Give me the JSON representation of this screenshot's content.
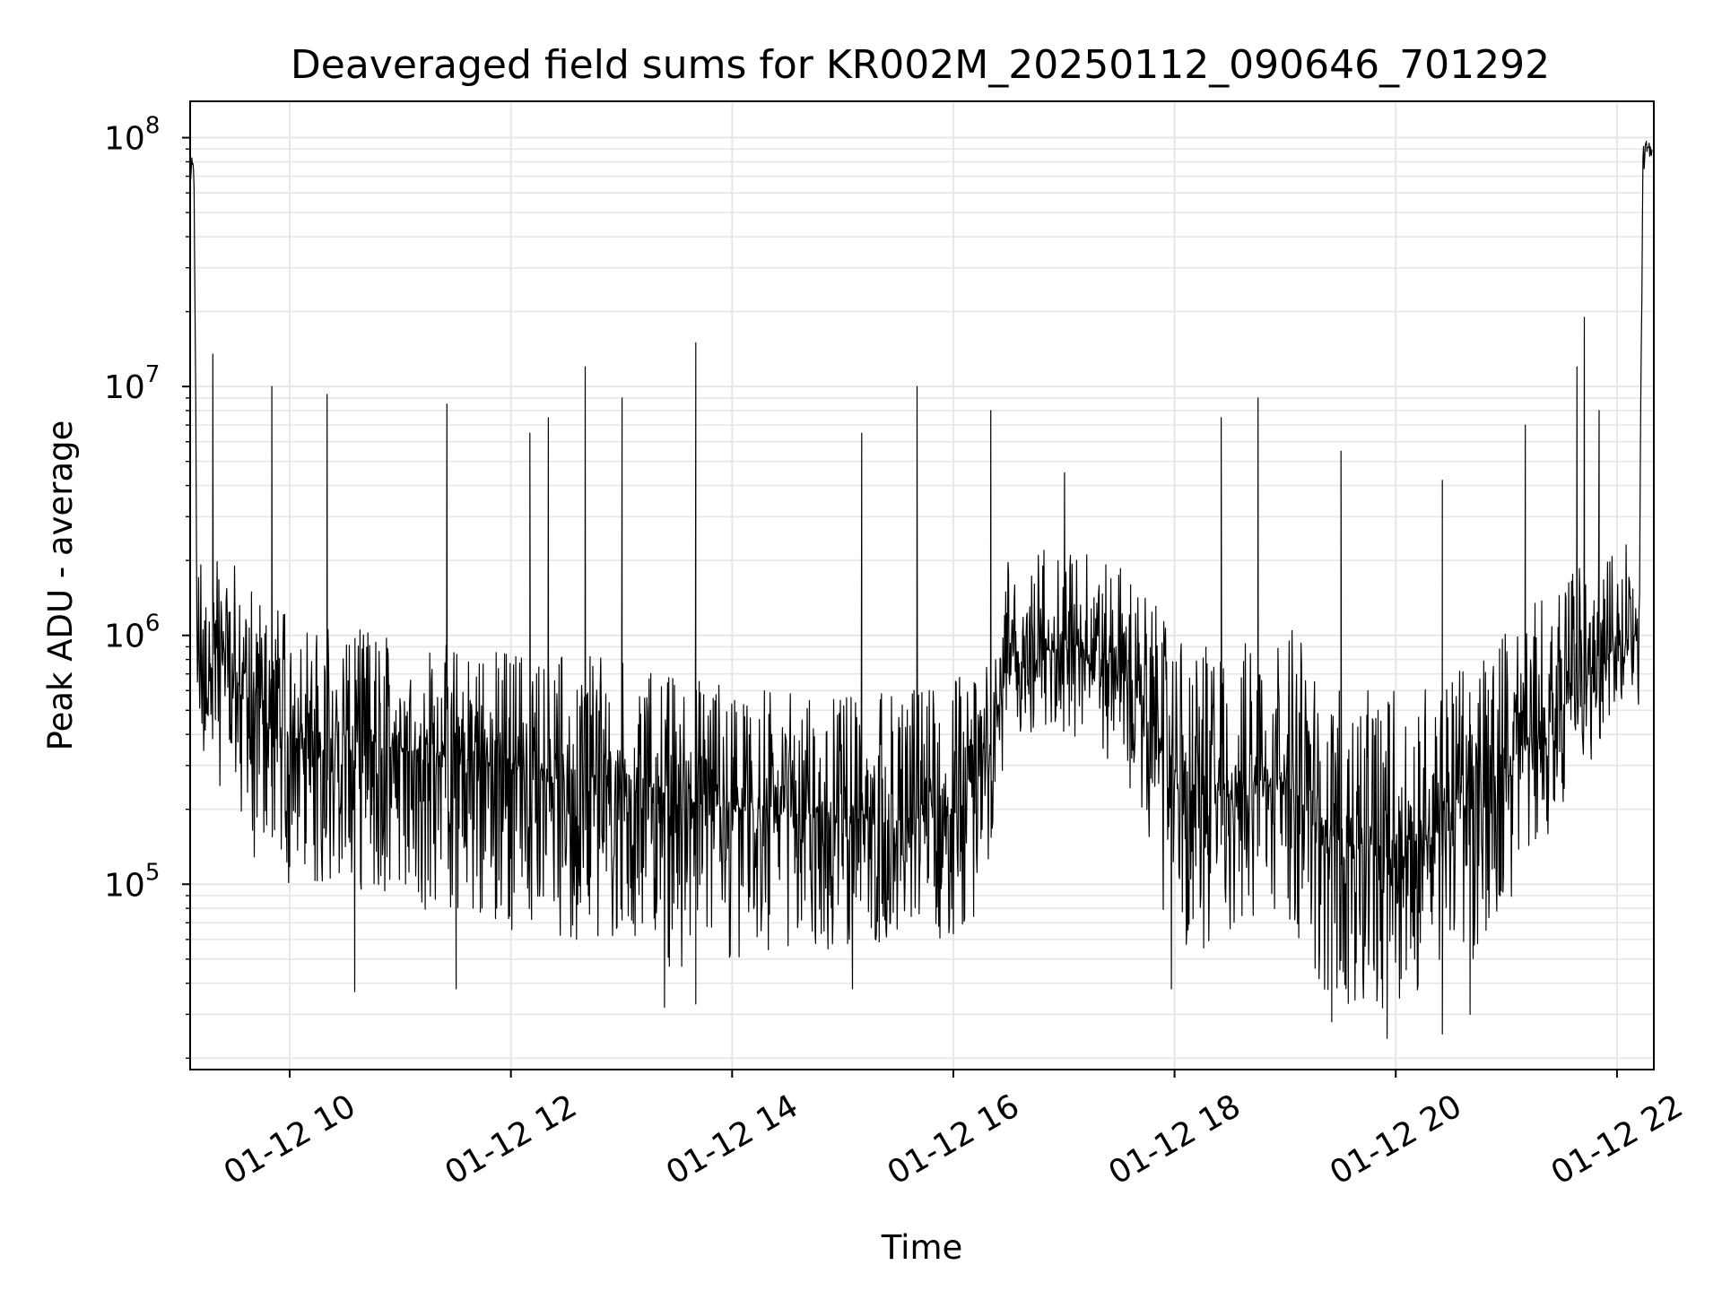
{
  "chart_data": {
    "type": "line",
    "title": "Deaveraged field sums for KR002M_20250112_090646_701292",
    "xlabel": "Time",
    "ylabel": "Peak ADU - average",
    "yscale": "log",
    "ylim": [
      18000,
      140000000
    ],
    "xlim": [
      "01-12 09:06",
      "01-12 22:20"
    ],
    "grid": true,
    "line_color": "#000000",
    "grid_color": "#e6e6e6",
    "x_ticks": [
      {
        "label": "01-12 10",
        "value": "01-12 10:00"
      },
      {
        "label": "01-12 12",
        "value": "01-12 12:00"
      },
      {
        "label": "01-12 14",
        "value": "01-12 14:00"
      },
      {
        "label": "01-12 16",
        "value": "01-12 16:00"
      },
      {
        "label": "01-12 18",
        "value": "01-12 18:00"
      },
      {
        "label": "01-12 20",
        "value": "01-12 20:00"
      },
      {
        "label": "01-12 22",
        "value": "01-12 22:00"
      }
    ],
    "y_ticks": [
      {
        "base": "10",
        "exp": "5",
        "value": 100000
      },
      {
        "base": "10",
        "exp": "6",
        "value": 1000000
      },
      {
        "base": "10",
        "exp": "7",
        "value": 10000000
      },
      {
        "base": "10",
        "exp": "8",
        "value": 100000000
      }
    ],
    "series": [
      {
        "x": [
          "01-12 09:06",
          "01-12 09:07",
          "01-12 09:08",
          "01-12 09:10",
          "01-12 09:15",
          "01-12 09:30",
          "01-12 09:45",
          "01-12 10:00",
          "01-12 10:30",
          "01-12 11:00",
          "01-12 11:30",
          "01-12 12:00",
          "01-12 12:30",
          "01-12 13:00",
          "01-12 13:30",
          "01-12 14:00",
          "01-12 14:30",
          "01-12 15:00",
          "01-12 15:30",
          "01-12 16:00",
          "01-12 16:15",
          "01-12 16:30",
          "01-12 17:00",
          "01-12 17:30",
          "01-12 17:45",
          "01-12 18:00",
          "01-12 18:30",
          "01-12 19:00",
          "01-12 19:15",
          "01-12 19:30",
          "01-12 20:00",
          "01-12 20:30",
          "01-12 21:00",
          "01-12 21:30",
          "01-12 21:45",
          "01-12 22:00",
          "01-12 22:10",
          "01-12 22:12",
          "01-12 22:14",
          "01-12 22:16",
          "01-12 22:19"
        ],
        "median": [
          70000000,
          75000000,
          78000000,
          800000,
          900000,
          700000,
          500000,
          400000,
          380000,
          350000,
          320000,
          300000,
          280000,
          270000,
          220000,
          200000,
          190000,
          180000,
          175000,
          190000,
          250000,
          800000,
          900000,
          750000,
          500000,
          250000,
          220000,
          280000,
          180000,
          150000,
          140000,
          170000,
          300000,
          500000,
          700000,
          900000,
          1000000,
          900000,
          80000000,
          90000000,
          85000000
        ],
        "low": [
          60000000,
          65000000,
          70000000,
          400000,
          300000,
          200000,
          100000,
          100000,
          90000,
          80000,
          70000,
          60000,
          60000,
          60000,
          40000,
          50000,
          50000,
          55000,
          60000,
          60000,
          80000,
          400000,
          400000,
          300000,
          150000,
          50000,
          60000,
          80000,
          40000,
          30000,
          30000,
          40000,
          70000,
          200000,
          300000,
          500000,
          600000,
          500000,
          70000000,
          80000000,
          75000000
        ],
        "high": [
          80000000,
          80000000,
          80000000,
          2000000,
          2500000,
          2000000,
          1500000,
          1200000,
          1100000,
          1000000,
          900000,
          900000,
          850000,
          800000,
          700000,
          650000,
          600000,
          600000,
          600000,
          700000,
          900000,
          2200000,
          2500000,
          2000000,
          1500000,
          1000000,
          900000,
          1200000,
          800000,
          600000,
          600000,
          700000,
          1100000,
          1700000,
          2200000,
          2500000,
          2200000,
          1500000,
          90000000,
          95000000,
          90000000
        ],
        "spikes": [
          {
            "x": "01-12 09:18",
            "y": 13500000
          },
          {
            "x": "01-12 09:50",
            "y": 10000000
          },
          {
            "x": "01-12 10:20",
            "y": 9300000
          },
          {
            "x": "01-12 11:25",
            "y": 8500000
          },
          {
            "x": "01-12 12:10",
            "y": 6500000
          },
          {
            "x": "01-12 12:20",
            "y": 7500000
          },
          {
            "x": "01-12 12:40",
            "y": 12000000
          },
          {
            "x": "01-12 13:00",
            "y": 9000000
          },
          {
            "x": "01-12 13:40",
            "y": 15000000
          },
          {
            "x": "01-12 15:10",
            "y": 6500000
          },
          {
            "x": "01-12 15:40",
            "y": 10000000
          },
          {
            "x": "01-12 16:20",
            "y": 8000000
          },
          {
            "x": "01-12 17:00",
            "y": 4500000
          },
          {
            "x": "01-12 18:25",
            "y": 7500000
          },
          {
            "x": "01-12 18:45",
            "y": 9000000
          },
          {
            "x": "01-12 19:30",
            "y": 5500000
          },
          {
            "x": "01-12 20:25",
            "y": 4200000
          },
          {
            "x": "01-12 21:10",
            "y": 7000000
          },
          {
            "x": "01-12 21:38",
            "y": 12000000
          },
          {
            "x": "01-12 21:42",
            "y": 19000000
          },
          {
            "x": "01-12 21:50",
            "y": 8000000
          }
        ],
        "dips": [
          {
            "x": "01-12 10:35",
            "y": 37000
          },
          {
            "x": "01-12 11:30",
            "y": 38000
          },
          {
            "x": "01-12 13:23",
            "y": 32000
          },
          {
            "x": "01-12 13:40",
            "y": 33000
          },
          {
            "x": "01-12 15:05",
            "y": 38000
          },
          {
            "x": "01-12 17:58",
            "y": 38000
          },
          {
            "x": "01-12 19:25",
            "y": 28000
          },
          {
            "x": "01-12 19:55",
            "y": 24000
          },
          {
            "x": "01-12 20:25",
            "y": 25000
          },
          {
            "x": "01-12 20:40",
            "y": 30000
          }
        ]
      }
    ]
  }
}
